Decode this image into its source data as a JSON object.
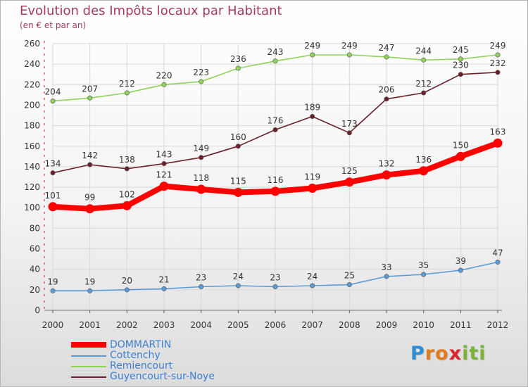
{
  "title": "Evolution des Impôts locaux par Habitant",
  "subtitle": "(en € et par an)",
  "logo": {
    "text": "Proxiti",
    "letters": [
      "P",
      "r",
      "o",
      "x",
      "i",
      "t",
      "i"
    ],
    "colors": [
      "#2d8fd8",
      "#e27b1d",
      "#e27b1d",
      "#d9262f",
      "#7ab33c",
      "#7ab33c",
      "#7ab33c"
    ]
  },
  "chart_data": {
    "type": "line",
    "title": "Evolution des Impôts locaux par Habitant",
    "subtitle": "(en € et par an)",
    "x": [
      "2000",
      "2001",
      "2002",
      "2003",
      "2004",
      "2005",
      "2006",
      "2007",
      "2008",
      "2009",
      "2010",
      "2011",
      "2012"
    ],
    "ylim": [
      0,
      260
    ],
    "yticks": [
      0,
      20,
      40,
      60,
      80,
      100,
      120,
      140,
      160,
      180,
      200,
      220,
      240,
      260
    ],
    "grid": true,
    "legend_position": "bottom-left",
    "series": [
      {
        "name": "DOMMARTIN",
        "color": "#ff0000",
        "emphasis": true,
        "values": [
          101,
          99,
          102,
          121,
          118,
          115,
          116,
          119,
          125,
          132,
          136,
          150,
          163
        ]
      },
      {
        "name": "Cottenchy",
        "color": "#5b9bd5",
        "emphasis": false,
        "values": [
          19,
          19,
          20,
          21,
          23,
          24,
          23,
          24,
          25,
          33,
          35,
          39,
          47
        ]
      },
      {
        "name": "Remiencourt",
        "color": "#8fd35a",
        "emphasis": false,
        "values": [
          204,
          207,
          212,
          220,
          223,
          236,
          243,
          249,
          249,
          247,
          244,
          245,
          249
        ]
      },
      {
        "name": "Guyencourt-sur-Noye",
        "color": "#6b1f2a",
        "emphasis": false,
        "values": [
          134,
          142,
          138,
          143,
          149,
          160,
          176,
          189,
          173,
          206,
          212,
          230,
          232
        ]
      }
    ]
  }
}
